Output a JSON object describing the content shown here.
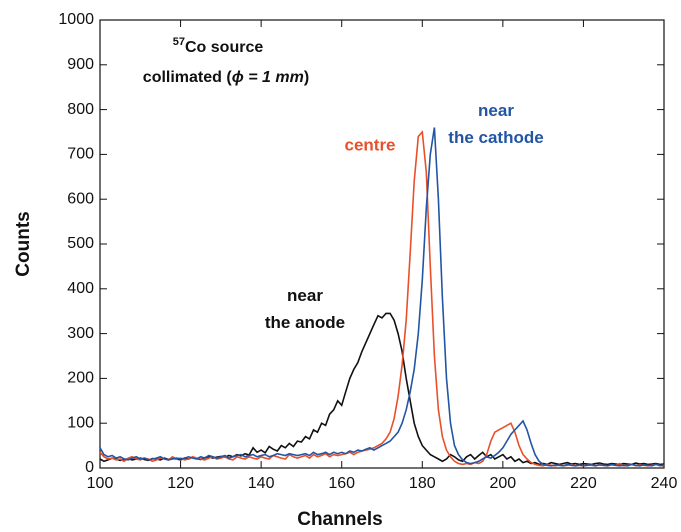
{
  "chart_data": {
    "type": "line",
    "xlabel": "Channels",
    "ylabel": "Counts",
    "annotations": [
      "57",
      "Co source",
      "collimated (",
      "ϕ = 1 mm",
      ")"
    ],
    "x": [
      100,
      101,
      102,
      103,
      104,
      105,
      106,
      107,
      108,
      109,
      110,
      111,
      112,
      113,
      114,
      115,
      116,
      117,
      118,
      119,
      120,
      121,
      122,
      123,
      124,
      125,
      126,
      127,
      128,
      129,
      130,
      131,
      132,
      133,
      134,
      135,
      136,
      137,
      138,
      139,
      140,
      141,
      142,
      143,
      144,
      145,
      146,
      147,
      148,
      149,
      150,
      151,
      152,
      153,
      154,
      155,
      156,
      157,
      158,
      159,
      160,
      161,
      162,
      163,
      164,
      165,
      166,
      167,
      168,
      169,
      170,
      171,
      172,
      173,
      174,
      175,
      176,
      177,
      178,
      179,
      180,
      181,
      182,
      183,
      184,
      185,
      186,
      187,
      188,
      189,
      190,
      191,
      192,
      193,
      194,
      195,
      196,
      197,
      198,
      199,
      200,
      201,
      202,
      203,
      204,
      205,
      206,
      207,
      208,
      209,
      210,
      211,
      212,
      213,
      214,
      215,
      216,
      217,
      218,
      219,
      220,
      221,
      222,
      223,
      224,
      225,
      226,
      227,
      228,
      229,
      230,
      231,
      232,
      233,
      234,
      235,
      236,
      237,
      238,
      239,
      240
    ],
    "series": [
      {
        "name": "near the anode",
        "color": "#111111",
        "values": [
          20,
          15,
          18,
          22,
          20,
          17,
          19,
          21,
          18,
          20,
          22,
          19,
          17,
          21,
          20,
          18,
          22,
          19,
          21,
          20,
          18,
          22,
          20,
          24,
          21,
          19,
          23,
          25,
          22,
          24,
          26,
          24,
          28,
          25,
          30,
          27,
          32,
          29,
          45,
          35,
          40,
          34,
          48,
          42,
          38,
          50,
          45,
          55,
          48,
          60,
          58,
          70,
          65,
          85,
          80,
          100,
          95,
          120,
          130,
          150,
          140,
          170,
          200,
          220,
          235,
          260,
          280,
          300,
          320,
          340,
          335,
          345,
          345,
          330,
          300,
          260,
          200,
          150,
          100,
          70,
          50,
          40,
          30,
          25,
          20,
          15,
          20,
          30,
          25,
          18,
          15,
          25,
          30,
          20,
          28,
          35,
          25,
          30,
          20,
          25,
          30,
          20,
          25,
          15,
          20,
          12,
          15,
          10,
          12,
          8,
          10,
          8,
          12,
          10,
          8,
          10,
          12,
          9,
          10,
          8,
          10,
          9,
          8,
          10,
          11,
          9,
          8,
          10,
          9,
          8,
          10,
          9,
          8,
          11,
          9,
          10,
          8,
          9,
          10,
          8,
          9
        ]
      },
      {
        "name": "centre",
        "color": "#e8502a",
        "values": [
          35,
          25,
          20,
          22,
          18,
          20,
          15,
          22,
          25,
          20,
          18,
          22,
          20,
          15,
          18,
          22,
          20,
          18,
          25,
          20,
          22,
          18,
          20,
          25,
          22,
          20,
          18,
          22,
          25,
          20,
          22,
          25,
          20,
          18,
          25,
          22,
          20,
          25,
          22,
          20,
          25,
          22,
          20,
          28,
          25,
          22,
          20,
          30,
          25,
          22,
          25,
          28,
          22,
          30,
          25,
          28,
          32,
          25,
          30,
          28,
          30,
          32,
          35,
          30,
          35,
          38,
          40,
          42,
          45,
          50,
          55,
          65,
          80,
          110,
          160,
          230,
          330,
          480,
          640,
          740,
          750,
          660,
          450,
          250,
          130,
          70,
          40,
          25,
          15,
          10,
          8,
          10,
          8,
          12,
          10,
          15,
          30,
          60,
          80,
          85,
          90,
          95,
          100,
          80,
          50,
          30,
          20,
          12,
          8,
          6,
          5,
          8,
          6,
          5,
          7,
          5,
          6,
          8,
          5,
          6,
          5,
          7,
          6,
          5,
          8,
          6,
          5,
          7,
          6,
          10,
          5,
          6,
          8,
          5,
          7,
          6,
          5,
          6,
          8,
          5,
          6
        ]
      },
      {
        "name": "near the cathode",
        "color": "#2255a4",
        "values": [
          45,
          30,
          25,
          28,
          22,
          25,
          20,
          18,
          22,
          25,
          20,
          22,
          18,
          20,
          22,
          25,
          20,
          18,
          20,
          22,
          20,
          22,
          25,
          22,
          20,
          25,
          22,
          28,
          25,
          22,
          25,
          28,
          22,
          25,
          28,
          30,
          25,
          28,
          30,
          25,
          28,
          30,
          25,
          28,
          32,
          30,
          28,
          32,
          30,
          28,
          30,
          32,
          28,
          35,
          30,
          32,
          35,
          30,
          35,
          32,
          35,
          32,
          38,
          35,
          40,
          38,
          42,
          45,
          40,
          45,
          50,
          55,
          60,
          70,
          80,
          100,
          130,
          170,
          220,
          300,
          420,
          580,
          700,
          760,
          600,
          380,
          200,
          100,
          50,
          30,
          18,
          12,
          10,
          12,
          15,
          20,
          25,
          22,
          28,
          35,
          45,
          60,
          75,
          85,
          95,
          105,
          85,
          55,
          30,
          15,
          8,
          6,
          5,
          7,
          6,
          5,
          8,
          6,
          5,
          7,
          5,
          6,
          8,
          5,
          7,
          6,
          5,
          8,
          6,
          5,
          6,
          5,
          8,
          6,
          5,
          7,
          6,
          5,
          8,
          6,
          5
        ]
      }
    ],
    "xlim": [
      100,
      240
    ],
    "xticks": [
      100,
      120,
      140,
      160,
      180,
      200,
      220,
      240
    ],
    "ylim": [
      0,
      1000
    ],
    "yticks": [
      0,
      100,
      200,
      300,
      400,
      500,
      600,
      700,
      800,
      900,
      1000
    ]
  }
}
